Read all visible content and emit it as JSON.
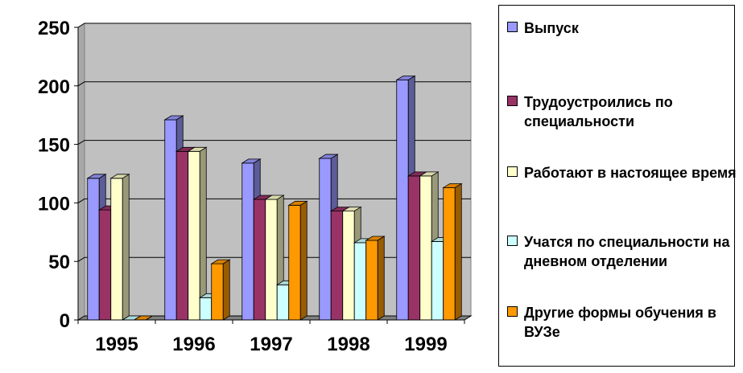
{
  "chart_data": {
    "type": "bar",
    "categories": [
      "1995",
      "1996",
      "1997",
      "1998",
      "1999"
    ],
    "ylim": [
      0,
      250
    ],
    "yticks": [
      "0",
      "50",
      "100",
      "150",
      "200",
      "250"
    ],
    "grid": true,
    "legend_position": "right",
    "series": [
      {
        "name": "Выпуск",
        "color": "#9999ff",
        "values": [
          121,
          171,
          134,
          138,
          205
        ]
      },
      {
        "name": "Трудоустроились по специальности",
        "color": "#993366",
        "values": [
          94,
          144,
          103,
          93,
          123
        ]
      },
      {
        "name": "Работают в настоящее время",
        "color": "#ffffcc",
        "values": [
          121,
          144,
          103,
          93,
          123
        ]
      },
      {
        "name": "Учатся по специальности на дневном отделении",
        "color": "#ccffff",
        "values": [
          0,
          19,
          30,
          66,
          67
        ]
      },
      {
        "name": "Другие формы обучения в ВУЗе",
        "color": "#ff9900",
        "values": [
          0,
          48,
          98,
          68,
          113
        ]
      }
    ]
  }
}
